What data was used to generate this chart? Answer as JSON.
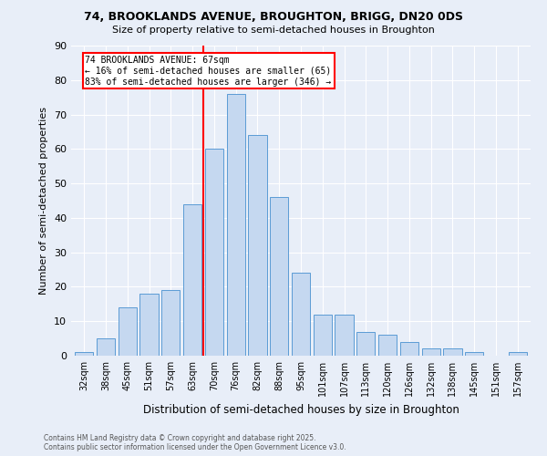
{
  "title1": "74, BROOKLANDS AVENUE, BROUGHTON, BRIGG, DN20 0DS",
  "title2": "Size of property relative to semi-detached houses in Broughton",
  "xlabel": "Distribution of semi-detached houses by size in Broughton",
  "ylabel": "Number of semi-detached properties",
  "categories": [
    "32sqm",
    "38sqm",
    "45sqm",
    "51sqm",
    "57sqm",
    "63sqm",
    "70sqm",
    "76sqm",
    "82sqm",
    "88sqm",
    "95sqm",
    "101sqm",
    "107sqm",
    "113sqm",
    "120sqm",
    "126sqm",
    "132sqm",
    "138sqm",
    "145sqm",
    "151sqm",
    "157sqm"
  ],
  "values": [
    1,
    5,
    14,
    18,
    19,
    44,
    60,
    76,
    64,
    46,
    24,
    12,
    12,
    7,
    6,
    4,
    2,
    2,
    1,
    0,
    1
  ],
  "bar_color": "#c5d8f0",
  "bar_edge_color": "#5b9bd5",
  "redline_x": 5.5,
  "annotation_title": "74 BROOKLANDS AVENUE: 67sqm",
  "annotation_line1": "← 16% of semi-detached houses are smaller (65)",
  "annotation_line2": "83% of semi-detached houses are larger (346) →",
  "ylim": [
    0,
    90
  ],
  "yticks": [
    0,
    10,
    20,
    30,
    40,
    50,
    60,
    70,
    80,
    90
  ],
  "footer1": "Contains HM Land Registry data © Crown copyright and database right 2025.",
  "footer2": "Contains public sector information licensed under the Open Government Licence v3.0.",
  "bg_color": "#e8eef8"
}
